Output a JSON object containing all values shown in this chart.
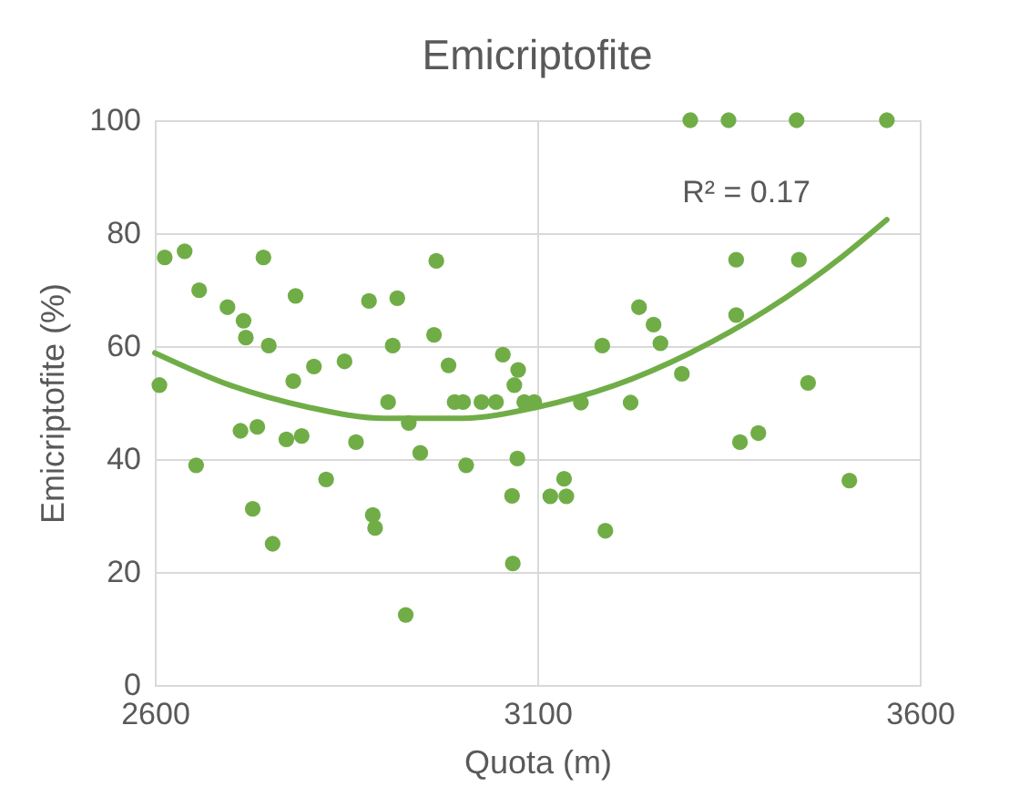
{
  "chart_data": {
    "type": "scatter",
    "title": "Emicriptofite",
    "xlabel": "Quota  (m)",
    "ylabel": "Emicriptofite (%)",
    "xlim": [
      2600,
      3600
    ],
    "xticks": [
      {
        "value": 2600,
        "label": "2600"
      },
      {
        "value": 3100,
        "label": "3100"
      },
      {
        "value": 3600,
        "label": "3600"
      }
    ],
    "ylim": [
      0,
      100
    ],
    "yticks": [
      0,
      20,
      40,
      60,
      80,
      100
    ],
    "grid": true,
    "legend": false,
    "marker": "circle",
    "annotations": [
      "R² = 0.17"
    ],
    "series": [
      {
        "color": "#70ad47",
        "x": [
          2613,
          2639,
          2658,
          2695,
          2716,
          2719,
          2749,
          2742,
          2784,
          2781,
          2808,
          2848,
          2880,
          2917,
          2911,
          2968,
          2965,
          2984,
          2606,
          2654,
          2712,
          2734,
          2772,
          2792,
          2863,
          2824,
          2728,
          2754,
          2885,
          2888,
          2905,
          2932,
          2947,
          2928,
          2992,
          3003,
          3007,
          3027,
          3046,
          3055,
          3075,
          3070,
          3083,
          3096,
          3074,
          3067,
          3068,
          3300,
          3350,
          3439,
          3557,
          3360,
          3442,
          3233,
          3252,
          3261,
          3360,
          3185,
          3289,
          3157,
          3222,
          3454,
          3365,
          3389,
          3508,
          3189,
          3135,
          3117,
          3138
        ],
        "values": [
          75.7,
          76.8,
          69.9,
          66.9,
          64.5,
          61.5,
          60.1,
          75.7,
          68.9,
          53.8,
          56.4,
          57.3,
          68.0,
          68.5,
          60.1,
          75.1,
          62.0,
          56.6,
          53.1,
          38.9,
          45.0,
          45.7,
          43.5,
          44.1,
          43.0,
          36.4,
          31.2,
          25.0,
          30.1,
          27.8,
          50.1,
          46.4,
          41.1,
          12.4,
          50.1,
          50.1,
          38.9,
          50.1,
          50.1,
          58.5,
          55.8,
          53.1,
          50.1,
          50.1,
          40.1,
          33.5,
          21.5,
          100,
          100,
          100,
          100,
          75.3,
          75.3,
          66.9,
          63.8,
          60.5,
          65.5,
          60.1,
          55.1,
          50.0,
          50.0,
          53.5,
          43.0,
          44.6,
          36.2,
          27.3,
          36.5,
          33.4,
          33.4
        ]
      },
      {
        "type": "line",
        "marker": "none",
        "color": "#70ad47",
        "x": [
          2600,
          2700,
          2800,
          2900,
          3000,
          3100,
          3200,
          3300,
          3400,
          3500,
          3557
        ],
        "values": [
          58.8,
          53,
          49.2,
          47.2,
          47.2,
          49.2,
          53,
          58.8,
          66.4,
          76,
          82.4
        ]
      }
    ]
  }
}
